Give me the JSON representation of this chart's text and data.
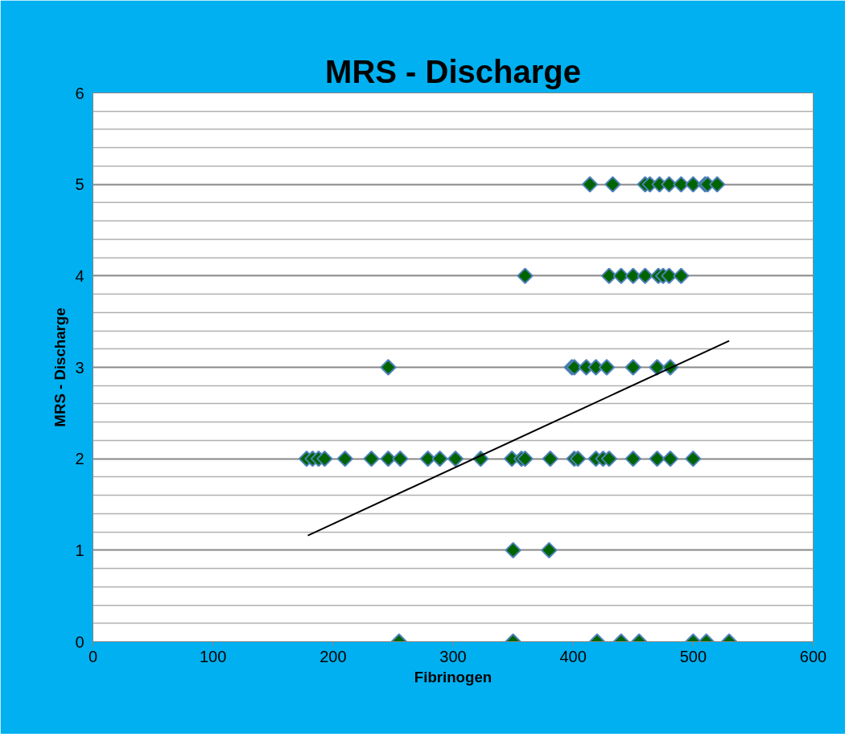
{
  "chart_data": {
    "type": "scatter",
    "title": "MRS - Discharge",
    "xlabel": "Fibrinogen",
    "ylabel": "MRS - Discharge",
    "xlim": [
      0,
      600
    ],
    "xticks": [
      0,
      100,
      200,
      300,
      400,
      500,
      600
    ],
    "ylim": [
      0,
      6
    ],
    "yticks": [
      0,
      {
        "value": 0.2,
        "label": null
      },
      {
        "value": 0.4,
        "label": null
      },
      {
        "value": 0.6,
        "label": null
      },
      {
        "value": 0.8,
        "label": null
      },
      1,
      {
        "value": 1.2,
        "label": null
      },
      {
        "value": 1.4,
        "label": null
      },
      {
        "value": 1.6,
        "label": null
      },
      {
        "value": 1.8,
        "label": null
      },
      2,
      {
        "value": 2.2,
        "label": null
      },
      {
        "value": 2.4,
        "label": null
      },
      {
        "value": 2.6,
        "label": null
      },
      {
        "value": 2.8,
        "label": null
      },
      3,
      {
        "value": 3.2,
        "label": null
      },
      {
        "value": 3.4,
        "label": null
      },
      {
        "value": 3.6,
        "label": null
      },
      {
        "value": 3.8,
        "label": null
      },
      4,
      {
        "value": 4.2,
        "label": null
      },
      {
        "value": 4.4,
        "label": null
      },
      {
        "value": 4.6,
        "label": null
      },
      {
        "value": 4.8,
        "label": null
      },
      5,
      {
        "value": 5.2,
        "label": null
      },
      {
        "value": 5.4,
        "label": null
      },
      {
        "value": 5.6,
        "label": null
      },
      {
        "value": 5.8,
        "label": null
      },
      6
    ],
    "grid": "y",
    "series": [
      {
        "marker": "diamond",
        "color": "#006400",
        "x": [
          414,
          433,
          460,
          464,
          472,
          480,
          490,
          500,
          510,
          512,
          520,
          360,
          430,
          440,
          450,
          460,
          471,
          475,
          480,
          490,
          246,
          399,
          401,
          411,
          419,
          428,
          450,
          470,
          481,
          178,
          183,
          188,
          193,
          210,
          232,
          246,
          256,
          279,
          289,
          302,
          323,
          349,
          357,
          360,
          381,
          401,
          404,
          419,
          425,
          430,
          450,
          470,
          481,
          500,
          350,
          380,
          255,
          350,
          420,
          440,
          455,
          500,
          511,
          530
        ],
        "values": [
          5,
          5,
          5,
          5,
          5,
          5,
          5,
          5,
          5,
          5,
          5,
          4,
          4,
          4,
          4,
          4,
          4,
          4,
          4,
          4,
          3,
          3,
          3,
          3,
          3,
          3,
          3,
          3,
          3,
          2,
          2,
          2,
          2,
          2,
          2,
          2,
          2,
          2,
          2,
          2,
          2,
          2,
          2,
          2,
          2,
          2,
          2,
          2,
          2,
          2,
          2,
          2,
          2,
          2,
          1,
          1,
          0,
          0,
          0,
          0,
          0,
          0,
          0,
          0
        ]
      },
      {
        "type": "line",
        "color": "#000000",
        "x": [
          179,
          530
        ],
        "values": [
          1.16,
          3.29
        ]
      }
    ]
  }
}
